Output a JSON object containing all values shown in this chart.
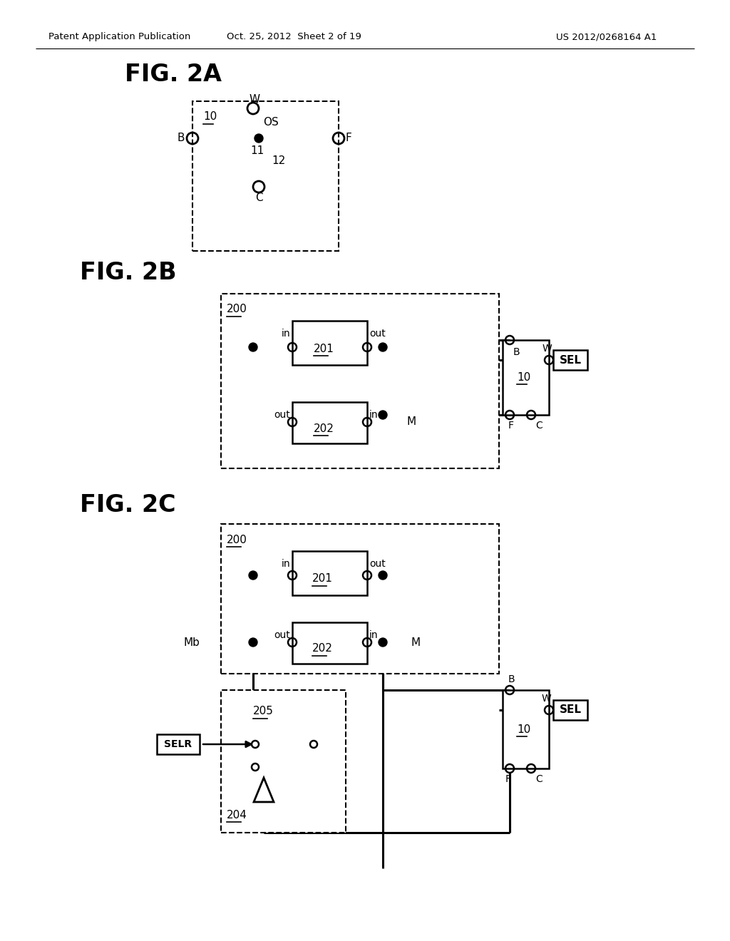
{
  "bg_color": "#ffffff",
  "header_left": "Patent Application Publication",
  "header_mid": "Oct. 25, 2012  Sheet 2 of 19",
  "header_right": "US 2012/0268164 A1",
  "fig2a_label": "FIG. 2A",
  "fig2b_label": "FIG. 2B",
  "fig2c_label": "FIG. 2C"
}
